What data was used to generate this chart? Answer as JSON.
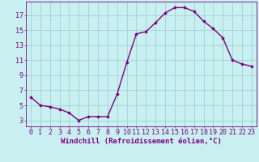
{
  "x": [
    0,
    1,
    2,
    3,
    4,
    5,
    6,
    7,
    8,
    9,
    10,
    11,
    12,
    13,
    14,
    15,
    16,
    17,
    18,
    19,
    20,
    21,
    22,
    23
  ],
  "y": [
    6.1,
    5.0,
    4.8,
    4.5,
    4.0,
    3.0,
    3.5,
    3.5,
    3.5,
    6.5,
    10.7,
    14.5,
    14.8,
    16.0,
    17.3,
    18.0,
    18.0,
    17.5,
    16.2,
    15.2,
    14.0,
    11.0,
    10.5,
    10.2
  ],
  "line_color": "#800080",
  "marker": "D",
  "marker_size": 1.8,
  "bg_color": "#c8f0f0",
  "grid_color": "#a0d0d0",
  "xlabel": "Windchill (Refroidissement éolien,°C)",
  "ylabel_ticks": [
    3,
    5,
    7,
    9,
    11,
    13,
    15,
    17
  ],
  "xtick_labels": [
    "0",
    "1",
    "2",
    "3",
    "4",
    "5",
    "6",
    "7",
    "8",
    "9",
    "10",
    "11",
    "12",
    "13",
    "14",
    "15",
    "16",
    "17",
    "18",
    "19",
    "20",
    "21",
    "22",
    "23"
  ],
  "ylim": [
    2.2,
    18.8
  ],
  "xlim": [
    -0.5,
    23.5
  ],
  "axis_color": "#800080",
  "tick_color": "#800080",
  "xlabel_color": "#800080",
  "xlabel_fontsize": 6.5,
  "tick_fontsize": 6.0,
  "line_width": 1.0
}
